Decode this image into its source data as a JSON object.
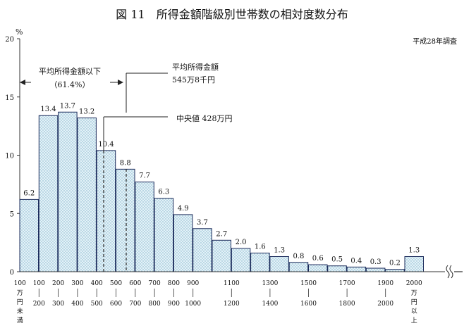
{
  "chart_data": {
    "type": "bar",
    "title": "図 11　所得金額階級別世帯数の相対度数分布",
    "survey_note": "平成28年調査",
    "ylabel": "%",
    "ylim": [
      0,
      20
    ],
    "yticks": [
      0,
      5,
      10,
      15,
      20
    ],
    "grid": false,
    "categories": [
      "100万円未満",
      "100-200",
      "200-300",
      "300-400",
      "400-500",
      "500-600",
      "600-700",
      "700-800",
      "800-900",
      "900-1000",
      "1000-1100",
      "1100-1200",
      "1200-1300",
      "1300-1400",
      "1400-1500",
      "1500-1600",
      "1600-1700",
      "1700-1800",
      "1800-1900",
      "1900-2000",
      "2000万円以上"
    ],
    "values": [
      6.2,
      13.4,
      13.7,
      13.2,
      10.4,
      8.8,
      7.7,
      6.3,
      4.9,
      3.7,
      2.7,
      2.0,
      1.6,
      1.3,
      0.8,
      0.6,
      0.5,
      0.4,
      0.3,
      0.2,
      1.3
    ],
    "value_labels": [
      "6.2",
      "13.4",
      "13.7",
      "13.2",
      "10.4",
      "8.8",
      "7.7",
      "6.3",
      "4.9",
      "3.7",
      "2.7",
      "2.0",
      "1.6",
      "1.3",
      "0.8",
      "0.6",
      "0.5",
      "0.4",
      "0.3",
      "0.2",
      "1.3"
    ],
    "x_tick_labels": [
      {
        "top": "100",
        "bottom": "万円未満"
      },
      {
        "top": "100",
        "bottom": "200"
      },
      {
        "top": "200",
        "bottom": "300"
      },
      {
        "top": "300",
        "bottom": "400"
      },
      {
        "top": "400",
        "bottom": "500"
      },
      {
        "top": "500",
        "bottom": "600"
      },
      {
        "top": "600",
        "bottom": "700"
      },
      {
        "top": "700",
        "bottom": "800"
      },
      {
        "top": "800",
        "bottom": "900"
      },
      {
        "top": "900",
        "bottom": "1000"
      },
      {
        "top": "1100",
        "bottom": "1200"
      },
      {
        "top": "1300",
        "bottom": "1400"
      },
      {
        "top": "1500",
        "bottom": "1600"
      },
      {
        "top": "1700",
        "bottom": "1800"
      },
      {
        "top": "1900",
        "bottom": "2000"
      },
      {
        "top": "2000",
        "bottom": "万円以上"
      }
    ],
    "annotations": {
      "below_average_label": "平均所得金額以下",
      "below_average_pct": "（61.4%）",
      "mean_label": "平均所得金額",
      "mean_value": "545万8千円",
      "median_label": "中央値 428万円",
      "mean_income": 545.8,
      "median_income": 428
    },
    "colors": {
      "bar_fill": "#d9eef5",
      "bar_stroke": "#1a2a5a",
      "axis": "#333333",
      "dot": "#7fb0c8"
    }
  }
}
